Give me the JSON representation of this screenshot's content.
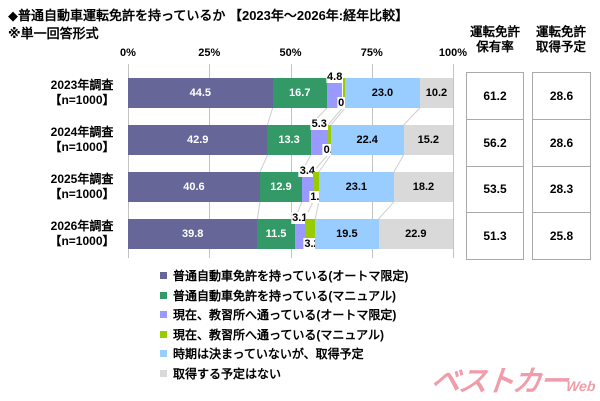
{
  "chart_data": {
    "type": "bar",
    "orientation": "horizontal-stacked",
    "title": "◆普通自動車運転免許を持っているか 【2023年～2026年:経年比較】",
    "subtitle": "※単一回答形式",
    "xlim": [
      0,
      100
    ],
    "x_ticks": [
      "0%",
      "25%",
      "50%",
      "75%",
      "100%"
    ],
    "grid": true,
    "legend_position": "bottom-left",
    "categories": [
      {
        "label": "2023年調査",
        "n": "【n=1000】"
      },
      {
        "label": "2024年調査",
        "n": "【n=1000】"
      },
      {
        "label": "2025年調査",
        "n": "【n=1000】"
      },
      {
        "label": "2026年調査",
        "n": "【n=1000】"
      }
    ],
    "series": [
      {
        "name": "普通自動車免許を持っている(オートマ限定)",
        "color": "#666699",
        "label_color": "#ffffff",
        "label_style": "inside",
        "values": [
          44.5,
          42.9,
          40.6,
          39.8
        ]
      },
      {
        "name": "普通自動車免許を持っている(マニュアル)",
        "color": "#339966",
        "label_color": "#ffffff",
        "label_style": "inside",
        "values": [
          16.7,
          13.3,
          12.9,
          11.5
        ]
      },
      {
        "name": "現在、教習所へ通っている(オートマ限定)",
        "color": "#9999FF",
        "label_color": "#000000",
        "label_style": "callout-top",
        "values": [
          4.8,
          5.3,
          3.4,
          3.1
        ]
      },
      {
        "name": "現在、教習所へ通っている(マニュアル)",
        "color": "#99CC00",
        "label_color": "#000000",
        "label_style": "callout-bottom",
        "values": [
          0.8,
          0.9,
          1.8,
          3.2
        ]
      },
      {
        "name": "時期は決まっていないが、取得予定",
        "color": "#99CCFF",
        "label_color": "#000000",
        "label_style": "inside",
        "values": [
          23.0,
          22.4,
          23.1,
          19.5
        ]
      },
      {
        "name": "取得する予定はない",
        "color": "#D9D9D9",
        "label_color": "#000000",
        "label_style": "inside",
        "values": [
          10.2,
          15.2,
          18.2,
          22.9
        ]
      }
    ],
    "gridline_color": "#c3c3c3",
    "series_line_color": "#cfcfcf"
  },
  "summary_table": {
    "columns": [
      {
        "header_lines": [
          "運転免許",
          "保有率"
        ],
        "values": [
          "61.2",
          "56.2",
          "53.5",
          "51.3"
        ]
      },
      {
        "header_lines": [
          "運転免許",
          "取得予定"
        ],
        "values": [
          "28.6",
          "28.6",
          "28.3",
          "25.8"
        ]
      }
    ],
    "border_color": "#a9a9a9"
  },
  "watermark": {
    "text": "ベストカー",
    "suffix": "Web",
    "color": "#F19DA9"
  }
}
